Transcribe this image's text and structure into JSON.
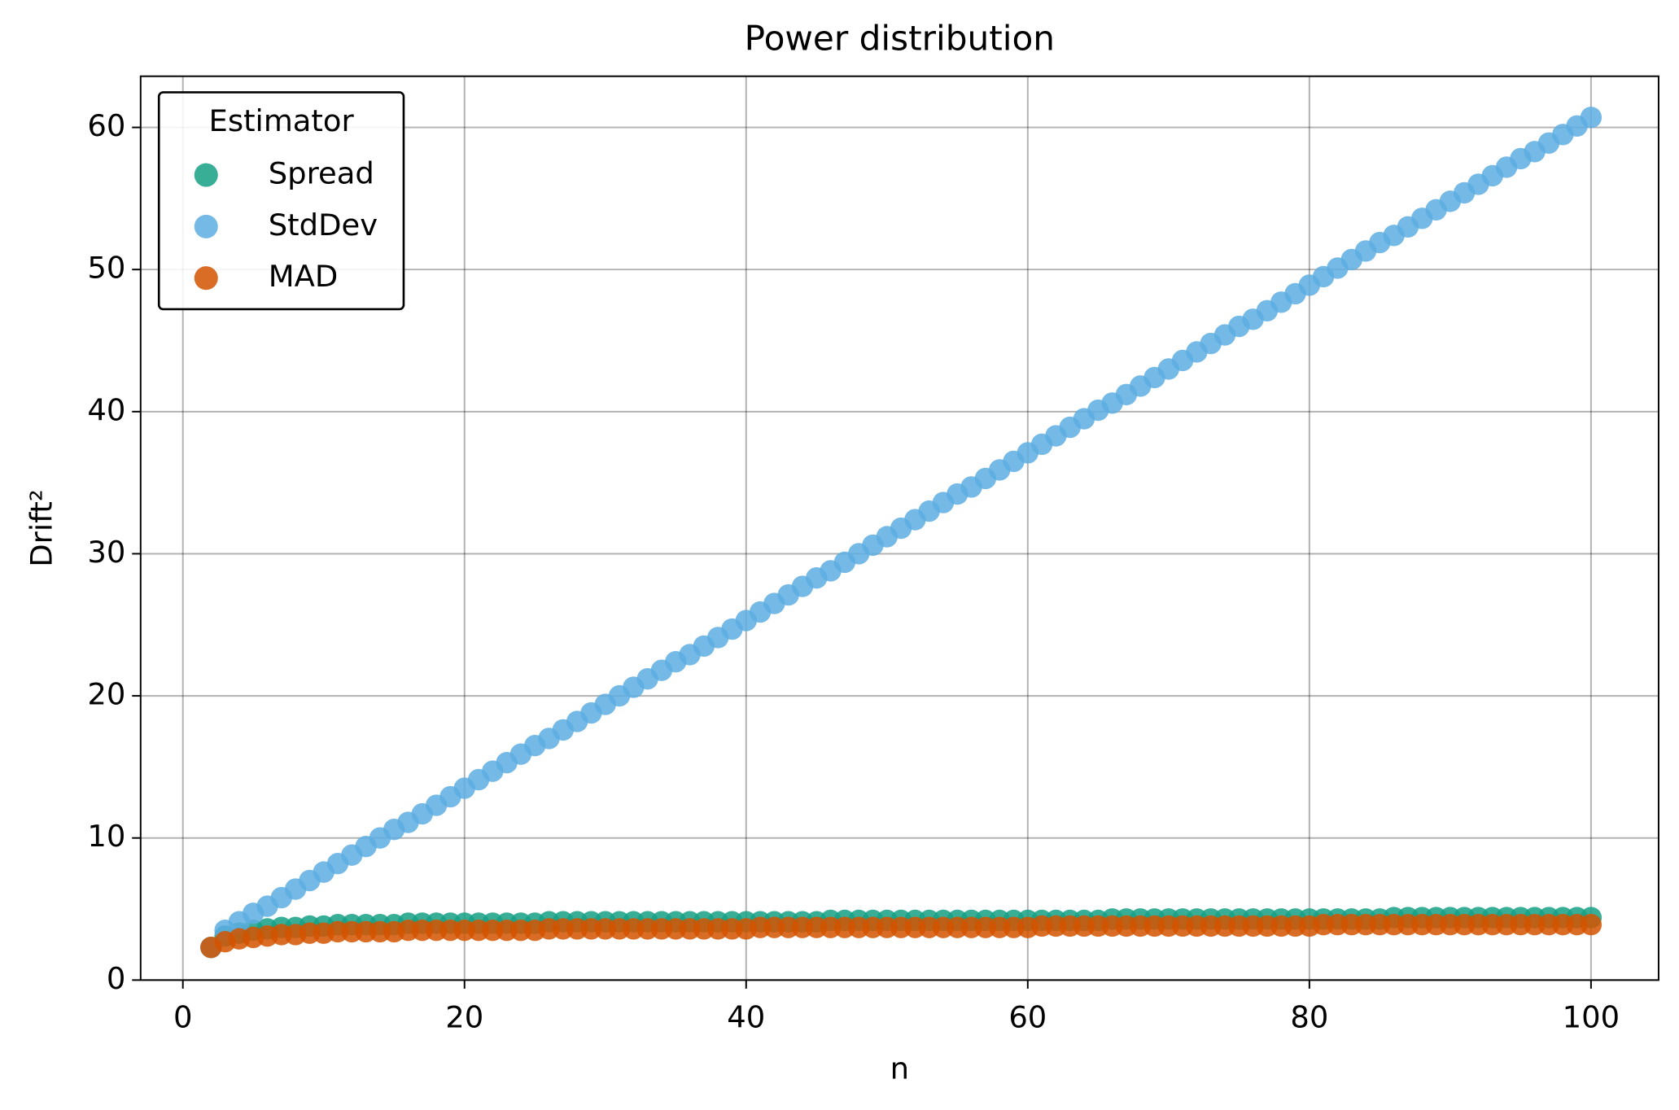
{
  "chart_data": {
    "type": "scatter",
    "title": "Power distribution",
    "x_label": "n",
    "y_label": "Drift²",
    "xlim": [
      -3,
      104.8
    ],
    "ylim": [
      0,
      63.6
    ],
    "xticks": [
      0,
      20,
      40,
      60,
      80,
      100
    ],
    "yticks": [
      0,
      10,
      20,
      30,
      40,
      50,
      60
    ],
    "grid": true,
    "legend_title": "Estimator",
    "legend_position": "upper left",
    "x": [
      2,
      3,
      4,
      5,
      6,
      7,
      8,
      9,
      10,
      11,
      12,
      13,
      14,
      15,
      16,
      17,
      18,
      19,
      20,
      21,
      22,
      23,
      24,
      25,
      26,
      27,
      28,
      29,
      30,
      31,
      32,
      33,
      34,
      35,
      36,
      37,
      38,
      39,
      40,
      41,
      42,
      43,
      44,
      45,
      46,
      47,
      48,
      49,
      50,
      51,
      52,
      53,
      54,
      55,
      56,
      57,
      58,
      59,
      60,
      61,
      62,
      63,
      64,
      65,
      66,
      67,
      68,
      69,
      70,
      71,
      72,
      73,
      74,
      75,
      76,
      77,
      78,
      79,
      80,
      81,
      82,
      83,
      84,
      85,
      86,
      87,
      88,
      89,
      90,
      91,
      92,
      93,
      94,
      95,
      96,
      97,
      98,
      99,
      100
    ],
    "series": [
      {
        "name": "Spread",
        "color": "#16a085",
        "values": [
          2.3,
          3.1,
          3.3,
          3.5,
          3.6,
          3.7,
          3.7,
          3.8,
          3.8,
          3.9,
          3.9,
          3.9,
          3.9,
          3.9,
          4.0,
          4.0,
          4.0,
          4.0,
          4.0,
          4.0,
          4.0,
          4.0,
          4.0,
          4.0,
          4.1,
          4.1,
          4.1,
          4.1,
          4.1,
          4.1,
          4.1,
          4.1,
          4.1,
          4.1,
          4.1,
          4.1,
          4.1,
          4.1,
          4.1,
          4.1,
          4.1,
          4.1,
          4.1,
          4.1,
          4.2,
          4.2,
          4.2,
          4.2,
          4.2,
          4.2,
          4.2,
          4.2,
          4.2,
          4.2,
          4.2,
          4.2,
          4.2,
          4.2,
          4.2,
          4.2,
          4.2,
          4.2,
          4.2,
          4.2,
          4.3,
          4.3,
          4.3,
          4.3,
          4.3,
          4.3,
          4.3,
          4.3,
          4.3,
          4.3,
          4.3,
          4.3,
          4.3,
          4.3,
          4.3,
          4.3,
          4.3,
          4.3,
          4.3,
          4.3,
          4.4,
          4.4,
          4.4,
          4.4,
          4.4,
          4.4,
          4.4,
          4.4,
          4.4,
          4.4,
          4.4,
          4.4,
          4.4,
          4.4,
          4.4
        ]
      },
      {
        "name": "StdDev",
        "color": "#5dade2",
        "values": [
          2.3,
          3.5,
          4.1,
          4.7,
          5.2,
          5.8,
          6.4,
          7.0,
          7.6,
          8.2,
          8.8,
          9.4,
          10.0,
          10.6,
          11.1,
          11.7,
          12.3,
          12.9,
          13.5,
          14.1,
          14.7,
          15.3,
          15.9,
          16.5,
          17.0,
          17.6,
          18.2,
          18.8,
          19.4,
          20.0,
          20.6,
          21.2,
          21.8,
          22.4,
          22.9,
          23.5,
          24.1,
          24.7,
          25.3,
          25.9,
          26.5,
          27.1,
          27.7,
          28.3,
          28.8,
          29.4,
          30.0,
          30.6,
          31.2,
          31.8,
          32.4,
          33.0,
          33.6,
          34.2,
          34.7,
          35.3,
          35.9,
          36.5,
          37.1,
          37.7,
          38.3,
          38.9,
          39.5,
          40.1,
          40.6,
          41.2,
          41.8,
          42.4,
          43.0,
          43.6,
          44.2,
          44.8,
          45.4,
          46.0,
          46.5,
          47.1,
          47.7,
          48.3,
          48.9,
          49.5,
          50.1,
          50.7,
          51.3,
          51.9,
          52.4,
          53.0,
          53.6,
          54.2,
          54.8,
          55.4,
          56.0,
          56.6,
          57.2,
          57.8,
          58.3,
          58.9,
          59.5,
          60.1,
          60.7
        ]
      },
      {
        "name": "MAD",
        "color": "#d35400",
        "values": [
          2.3,
          2.7,
          2.9,
          3.0,
          3.1,
          3.2,
          3.2,
          3.3,
          3.3,
          3.4,
          3.4,
          3.4,
          3.4,
          3.4,
          3.5,
          3.5,
          3.5,
          3.5,
          3.5,
          3.5,
          3.5,
          3.5,
          3.5,
          3.5,
          3.6,
          3.6,
          3.6,
          3.6,
          3.6,
          3.6,
          3.6,
          3.6,
          3.6,
          3.6,
          3.6,
          3.6,
          3.6,
          3.6,
          3.6,
          3.7,
          3.7,
          3.7,
          3.7,
          3.7,
          3.7,
          3.7,
          3.7,
          3.7,
          3.7,
          3.7,
          3.7,
          3.7,
          3.7,
          3.7,
          3.7,
          3.7,
          3.7,
          3.7,
          3.7,
          3.8,
          3.8,
          3.8,
          3.8,
          3.8,
          3.8,
          3.8,
          3.8,
          3.8,
          3.8,
          3.8,
          3.8,
          3.8,
          3.8,
          3.8,
          3.8,
          3.8,
          3.8,
          3.8,
          3.8,
          3.9,
          3.9,
          3.9,
          3.9,
          3.9,
          3.9,
          3.9,
          3.9,
          3.9,
          3.9,
          3.9,
          3.9,
          3.9,
          3.9,
          3.9,
          3.9,
          3.9,
          3.9,
          3.9,
          3.9
        ]
      }
    ]
  }
}
